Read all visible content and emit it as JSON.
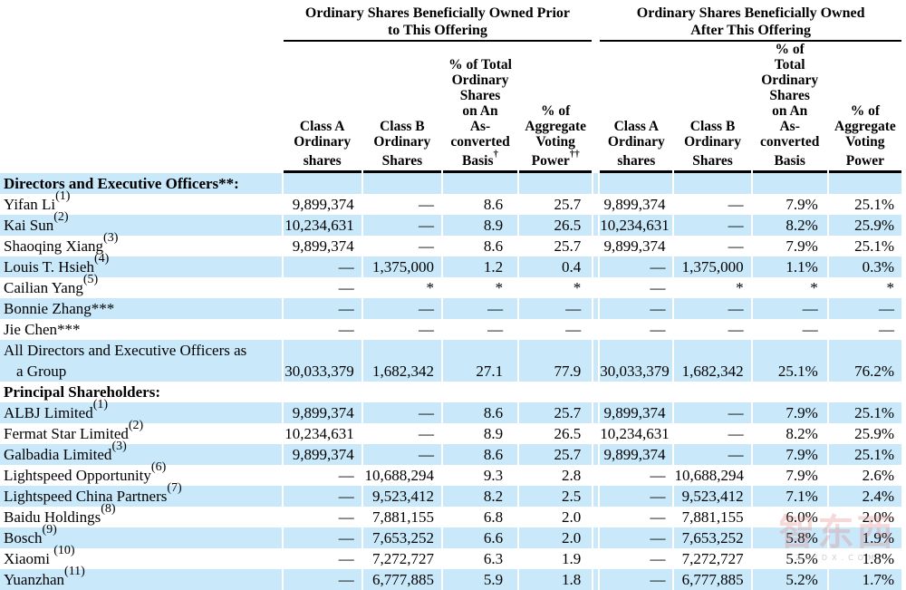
{
  "page": {
    "background": "#ffffff",
    "text_color": "#000000",
    "row_stripe_color": "#c9e8f9"
  },
  "table": {
    "group_headers": [
      {
        "label": "Ordinary Shares Beneficially Owned Prior\nto This Offering"
      },
      {
        "label": "Ordinary Shares Beneficially Owned\nAfter This Offering"
      }
    ],
    "columns": [
      {
        "label": "Class A\nOrdinary\nshares",
        "sup": ""
      },
      {
        "label": "Class B\nOrdinary\nShares",
        "sup": ""
      },
      {
        "label": "% of Total\nOrdinary\nShares\non An\nAs-\nconverted\nBasis",
        "sup": "†"
      },
      {
        "label": "% of\nAggregate\nVoting\nPower",
        "sup": "††"
      },
      {
        "label": "Class A\nOrdinary\nshares",
        "sup": ""
      },
      {
        "label": "Class B\nOrdinary\nShares",
        "sup": ""
      },
      {
        "label": "% of\nTotal\nOrdinary\nShares\non An\nAs-\nconverted\nBasis",
        "sup": ""
      },
      {
        "label": "% of\nAggregate\nVoting\nPower",
        "sup": ""
      }
    ],
    "rows": [
      {
        "name": "Directors and Executive Officers**:",
        "sup": "",
        "name2": "",
        "bold": true,
        "shaded": true,
        "cells": [
          "",
          "",
          "",
          "",
          "",
          "",
          "",
          ""
        ]
      },
      {
        "name": "Yifan Li",
        "sup": "(1)",
        "name2": "",
        "bold": false,
        "shaded": false,
        "cells": [
          "9,899,374",
          "—",
          "8.6",
          "25.7",
          "9,899,374",
          "—",
          "7.9%",
          "25.1%"
        ]
      },
      {
        "name": "Kai Sun",
        "sup": "(2)",
        "name2": "",
        "bold": false,
        "shaded": true,
        "cells": [
          "10,234,631",
          "—",
          "8.9",
          "26.5",
          "10,234,631",
          "—",
          "8.2%",
          "25.9%"
        ]
      },
      {
        "name": "Shaoqing Xiang",
        "sup": "(3)",
        "name2": "",
        "bold": false,
        "shaded": false,
        "cells": [
          "9,899,374",
          "—",
          "8.6",
          "25.7",
          "9,899,374",
          "—",
          "7.9%",
          "25.1%"
        ]
      },
      {
        "name": "Louis T. Hsieh",
        "sup": "(4)",
        "name2": "",
        "bold": false,
        "shaded": true,
        "cells": [
          "—",
          "1,375,000",
          "1.2",
          "0.4",
          "—",
          "1,375,000",
          "1.1%",
          "0.3%"
        ]
      },
      {
        "name": "Cailian Yang",
        "sup": "(5)",
        "name2": "",
        "bold": false,
        "shaded": false,
        "cells": [
          "—",
          "*",
          "*",
          "*",
          "—",
          "*",
          "*",
          "*"
        ]
      },
      {
        "name": "Bonnie Zhang***",
        "sup": "",
        "name2": "",
        "bold": false,
        "shaded": true,
        "cells": [
          "—",
          "—",
          "—",
          "—",
          "—",
          "—",
          "—",
          "—"
        ]
      },
      {
        "name": "Jie Chen***",
        "sup": "",
        "name2": "",
        "bold": false,
        "shaded": false,
        "cells": [
          "—",
          "—",
          "—",
          "—",
          "—",
          "—",
          "—",
          "—"
        ]
      },
      {
        "name": "All Directors and Executive Officers as",
        "sup": "",
        "name2": "a Group",
        "bold": false,
        "shaded": true,
        "cells": [
          "30,033,379",
          "1,682,342",
          "27.1",
          "77.9",
          "30,033,379",
          "1,682,342",
          "25.1%",
          "76.2%"
        ]
      },
      {
        "name": "Principal Shareholders:",
        "sup": "",
        "name2": "",
        "bold": true,
        "shaded": false,
        "cells": [
          "",
          "",
          "",
          "",
          "",
          "",
          "",
          ""
        ]
      },
      {
        "name": "ALBJ Limited",
        "sup": "(1)",
        "name2": "",
        "bold": false,
        "shaded": true,
        "cells": [
          "9,899,374",
          "—",
          "8.6",
          "25.7",
          "9,899,374",
          "—",
          "7.9%",
          "25.1%"
        ]
      },
      {
        "name": "Fermat Star Limited",
        "sup": "(2)",
        "name2": "",
        "bold": false,
        "shaded": false,
        "cells": [
          "10,234,631",
          "—",
          "8.9",
          "26.5",
          "10,234,631",
          "—",
          "8.2%",
          "25.9%"
        ]
      },
      {
        "name": "Galbadia Limited",
        "sup": "(3)",
        "name2": "",
        "bold": false,
        "shaded": true,
        "cells": [
          "9,899,374",
          "—",
          "8.6",
          "25.7",
          "9,899,374",
          "—",
          "7.9%",
          "25.1%"
        ]
      },
      {
        "name": "Lightspeed Opportunity",
        "sup": "(6)",
        "name2": "",
        "bold": false,
        "shaded": false,
        "cells": [
          "—",
          "10,688,294",
          "9.3",
          "2.8",
          "—",
          "10,688,294",
          "7.9%",
          "2.6%"
        ]
      },
      {
        "name": "Lightspeed China Partners",
        "sup": "(7)",
        "name2": "",
        "bold": false,
        "shaded": true,
        "cells": [
          "—",
          "9,523,412",
          "8.2",
          "2.5",
          "—",
          "9,523,412",
          "7.1%",
          "2.4%"
        ]
      },
      {
        "name": "Baidu Holdings",
        "sup": "(8)",
        "name2": "",
        "bold": false,
        "shaded": false,
        "cells": [
          "—",
          "7,881,155",
          "6.8",
          "2.0",
          "—",
          "7,881,155",
          "6.0%",
          "2.0%"
        ]
      },
      {
        "name": "Bosch",
        "sup": "(9)",
        "name2": "",
        "bold": false,
        "shaded": true,
        "cells": [
          "—",
          "7,653,252",
          "6.6",
          "2.0",
          "—",
          "7,653,252",
          "5.8%",
          "1.9%"
        ]
      },
      {
        "name": "Xiaomi ",
        "sup": "(10)",
        "name2": "",
        "bold": false,
        "shaded": false,
        "cells": [
          "—",
          "7,272,727",
          "6.3",
          "1.9",
          "—",
          "7,272,727",
          "5.5%",
          "1.8%"
        ]
      },
      {
        "name": "Yuanzhan",
        "sup": "(11)",
        "name2": "",
        "bold": false,
        "shaded": true,
        "cells": [
          "—",
          "6,777,885",
          "5.9",
          "1.8",
          "—",
          "6,777,885",
          "5.2%",
          "1.7%"
        ]
      }
    ]
  },
  "watermark": {
    "text": "智东西",
    "subtext": "ZHIDX.COM"
  }
}
